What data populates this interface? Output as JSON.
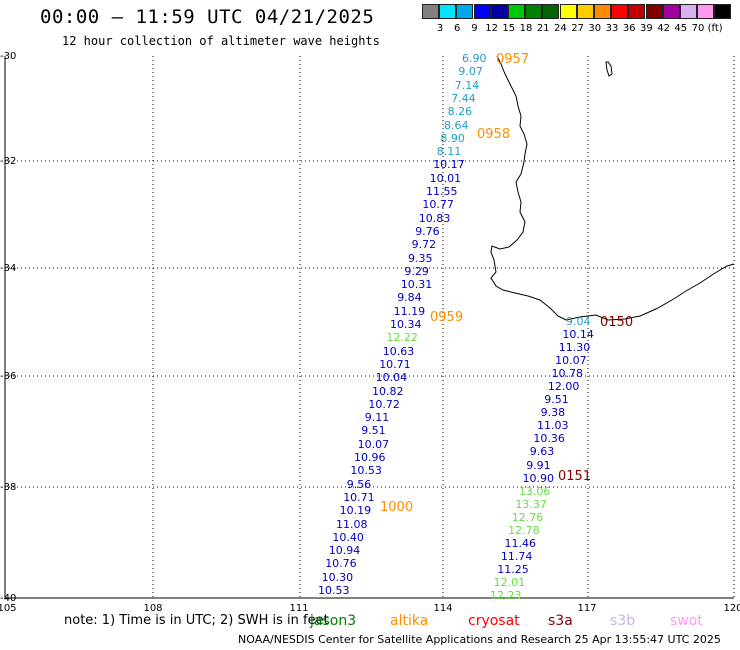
{
  "header": {
    "title": "00:00 – 11:59 UTC 04/21/2025",
    "subtitle": "12 hour collection of altimeter wave heights"
  },
  "color_scale": {
    "swatches": [
      "#808080",
      "#00e5ff",
      "#00a8e8",
      "#0000ff",
      "#0000a0",
      "#00c800",
      "#008000",
      "#006400",
      "#ffff00",
      "#ffcc00",
      "#ff8c00",
      "#ff0000",
      "#c00000",
      "#800000",
      "#a000a0",
      "#d8b0f0",
      "#ff99ee",
      "#000000"
    ],
    "labels": [
      "3",
      "6",
      "9",
      "12",
      "15",
      "18",
      "21",
      "24",
      "27",
      "30",
      "33",
      "36",
      "39",
      "42",
      "45",
      "70",
      "(ft)"
    ]
  },
  "axes": {
    "y_labels": [
      "-30",
      "-32",
      "-34",
      "-36",
      "-38",
      "-40"
    ],
    "x_labels": [
      "105",
      "108",
      "111",
      "114",
      "117",
      "120"
    ]
  },
  "tracks": [
    {
      "color": "#1e9ec8",
      "values": [
        "6.90",
        "9.07",
        "7.14",
        "7.44",
        "8.26",
        "8.64",
        "8.90",
        "8.11"
      ]
    },
    {
      "color": "#0000c0",
      "values": [
        "10.17",
        "10.01",
        "11.55",
        "10.77",
        "10.83",
        "9.76",
        "9.72",
        "9.35",
        "9.29",
        "10.31",
        "9.84",
        "11.19",
        "10.34"
      ]
    },
    {
      "color": "#66dd44",
      "values": [
        "12.22"
      ]
    },
    {
      "color": "#0000c0",
      "values": [
        "10.63",
        "10.71",
        "10.04",
        "10.82",
        "10.72",
        "9.11",
        "9.51",
        "10.07",
        "10.96",
        "10.53",
        "9.56",
        "10.71",
        "10.19",
        "11.08",
        "10.40",
        "10.94",
        "10.76",
        "10.30",
        "10.53"
      ]
    },
    {
      "color": "#1e9ec8",
      "values": [
        "9.04"
      ]
    },
    {
      "color": "#0000c0",
      "values": [
        "10.14",
        "11.30",
        "10.07",
        "10.78",
        "12.00",
        "9.51",
        "9.38",
        "11.03",
        "10.36",
        "9.63",
        "9.91",
        "10.90"
      ]
    },
    {
      "color": "#66dd44",
      "values": [
        "13.06",
        "13.37",
        "12.76",
        "12.78"
      ]
    },
    {
      "color": "#0000c0",
      "values": [
        "11.46",
        "11.74",
        "11.25"
      ]
    },
    {
      "color": "#66dd44",
      "values": [
        "12.01",
        "12.23"
      ]
    }
  ],
  "time_labels": [
    {
      "text": "0957",
      "color": "#ff8c00"
    },
    {
      "text": "0958",
      "color": "#ff8c00"
    },
    {
      "text": "0959",
      "color": "#ff8c00"
    },
    {
      "text": "1000",
      "color": "#ff8c00"
    },
    {
      "text": "0150",
      "color": "#800000"
    },
    {
      "text": "0151",
      "color": "#800000"
    }
  ],
  "note": "note:  1) Time is in UTC; 2) SWH is in feet",
  "legend": [
    {
      "name": "jason3",
      "color": "#008000"
    },
    {
      "name": "altika",
      "color": "#ff8c00"
    },
    {
      "name": "cryosat",
      "color": "#ff0000"
    },
    {
      "name": "s3a",
      "color": "#800000"
    },
    {
      "name": "s3b",
      "color": "#c8b0f0"
    },
    {
      "name": "swot",
      "color": "#ff99ee"
    }
  ],
  "footer": "NOAA/NESDIS Center for Satellite Applications and Research    25 Apr 13:55:47 UTC 2025"
}
